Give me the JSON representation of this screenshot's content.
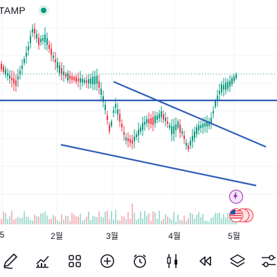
{
  "header": {
    "ticker_partial": "TAMP",
    "live_status_icon": "live-dot-icon"
  },
  "x_axis": {
    "labels": [
      "5",
      "2월",
      "3월",
      "4월",
      "5월"
    ]
  },
  "colors": {
    "up": "#089981",
    "down": "#f23645",
    "trendline": "#2962ff",
    "price_line": "#2e5cb8",
    "text": "#131722"
  },
  "chart_data": {
    "type": "candlestick",
    "title": "",
    "x_labels": [
      "2월",
      "3월",
      "4월",
      "5월"
    ],
    "trend_lines": 3,
    "volume_bars": true
  },
  "badges": [
    "lightning-icon",
    "us-flag-icon"
  ],
  "toolbar": {
    "items": [
      {
        "name": "draw-tool",
        "icon": "pencil-icon"
      },
      {
        "name": "indicators",
        "icon": "chart-up-icon"
      },
      {
        "name": "layouts",
        "icon": "grid-icon"
      },
      {
        "name": "add",
        "icon": "plus-icon"
      },
      {
        "name": "alert",
        "icon": "alarm-icon"
      },
      {
        "name": "compare",
        "icon": "candles-icon"
      },
      {
        "name": "replay",
        "icon": "rewind-icon"
      },
      {
        "name": "layers",
        "icon": "layers-icon"
      },
      {
        "name": "settings",
        "icon": "sliders-icon"
      }
    ]
  }
}
